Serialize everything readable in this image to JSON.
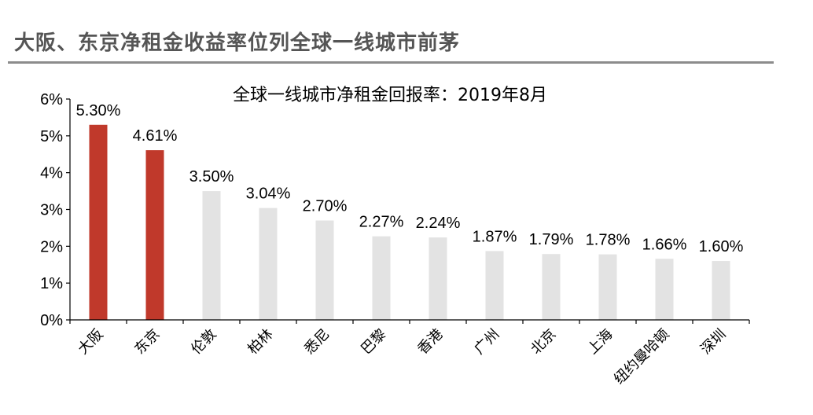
{
  "header": {
    "title": "大阪、东京净租金收益率位列全球一线城市前茅"
  },
  "chart_data": {
    "type": "bar",
    "title": "全球一线城市净租金回报率：2019年8月",
    "xlabel": "",
    "ylabel": "",
    "categories": [
      "大阪",
      "东京",
      "伦敦",
      "柏林",
      "悉尼",
      "巴黎",
      "香港",
      "广州",
      "北京",
      "上海",
      "纽约曼哈顿",
      "深圳"
    ],
    "values": [
      5.3,
      4.61,
      3.5,
      3.04,
      2.7,
      2.27,
      2.24,
      1.87,
      1.79,
      1.78,
      1.66,
      1.6
    ],
    "value_labels": [
      "5.30%",
      "4.61%",
      "3.50%",
      "3.04%",
      "2.70%",
      "2.27%",
      "2.24%",
      "1.87%",
      "1.79%",
      "1.78%",
      "1.66%",
      "1.60%"
    ],
    "highlight": [
      true,
      true,
      false,
      false,
      false,
      false,
      false,
      false,
      false,
      false,
      false,
      false
    ],
    "ylim": [
      0,
      6
    ],
    "yticks": [
      0,
      1,
      2,
      3,
      4,
      5,
      6
    ],
    "ytick_labels": [
      "0%",
      "1%",
      "2%",
      "3%",
      "4%",
      "5%",
      "6%"
    ],
    "grid": false,
    "legend": "none",
    "colors": {
      "highlight": "#c0392b",
      "normal": "#e3e3e3",
      "axis": "#000000"
    }
  }
}
